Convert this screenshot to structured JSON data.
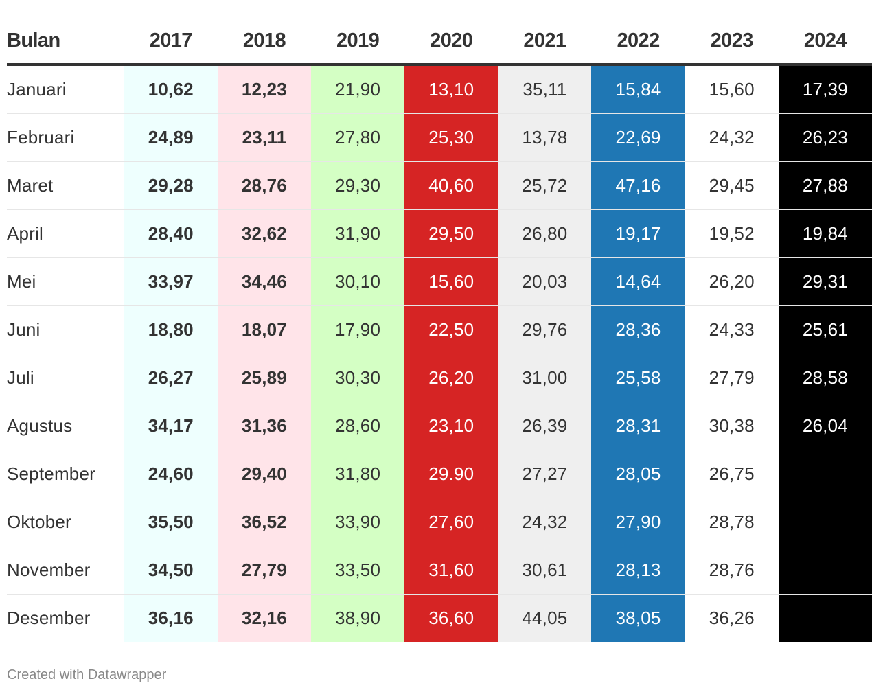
{
  "footer": "Created with Datawrapper",
  "chart_data": {
    "type": "table",
    "columns": [
      "Bulan",
      "2017",
      "2018",
      "2019",
      "2020",
      "2021",
      "2022",
      "2023",
      "2024"
    ],
    "column_styles": [
      {
        "bg": "#ffffff",
        "color": "#333333",
        "bold": false
      },
      {
        "bg": "#eefffe",
        "color": "#333333",
        "bold": true
      },
      {
        "bg": "#ffe4e9",
        "color": "#333333",
        "bold": true
      },
      {
        "bg": "#d4ffc4",
        "color": "#333333",
        "bold": false
      },
      {
        "bg": "#d62424",
        "color": "#ffffff",
        "bold": false
      },
      {
        "bg": "#efefef",
        "color": "#333333",
        "bold": false
      },
      {
        "bg": "#1f77b4",
        "color": "#ffffff",
        "bold": false
      },
      {
        "bg": "#ffffff",
        "color": "#333333",
        "bold": false
      },
      {
        "bg": "#000000",
        "color": "#ffffff",
        "bold": false
      }
    ],
    "rows": [
      [
        "Januari",
        "10,62",
        "12,23",
        "21,90",
        "13,10",
        "35,11",
        "15,84",
        "15,60",
        "17,39"
      ],
      [
        "Februari",
        "24,89",
        "23,11",
        "27,80",
        "25,30",
        "13,78",
        "22,69",
        "24,32",
        "26,23"
      ],
      [
        "Maret",
        "29,28",
        "28,76",
        "29,30",
        "40,60",
        "25,72",
        "47,16",
        "29,45",
        "27,88"
      ],
      [
        "April",
        "28,40",
        "32,62",
        "31,90",
        "29,50",
        "26,80",
        "19,17",
        "19,52",
        "19,84"
      ],
      [
        "Mei",
        "33,97",
        "34,46",
        "30,10",
        "15,60",
        "20,03",
        "14,64",
        "26,20",
        "29,31"
      ],
      [
        "Juni",
        "18,80",
        "18,07",
        "17,90",
        "22,50",
        "29,76",
        "28,36",
        "24,33",
        "25,61"
      ],
      [
        "Juli",
        "26,27",
        "25,89",
        "30,30",
        "26,20",
        "31,00",
        "25,58",
        "27,79",
        "28,58"
      ],
      [
        "Agustus",
        "34,17",
        "31,36",
        "28,60",
        "23,10",
        "26,39",
        "28,31",
        "30,38",
        "26,04"
      ],
      [
        "September",
        "24,60",
        "29,40",
        "31,80",
        "29.90",
        "27,27",
        "28,05",
        "26,75",
        ""
      ],
      [
        "Oktober",
        "35,50",
        "36,52",
        "33,90",
        "27,60",
        "24,32",
        "27,90",
        "28,78",
        ""
      ],
      [
        "November",
        "34,50",
        "27,79",
        "33,50",
        "31,60",
        "30,61",
        "28,13",
        "28,76",
        ""
      ],
      [
        "Desember",
        "36,16",
        "32,16",
        "38,90",
        "36,60",
        "44,05",
        "38,05",
        "36,26",
        ""
      ]
    ]
  }
}
